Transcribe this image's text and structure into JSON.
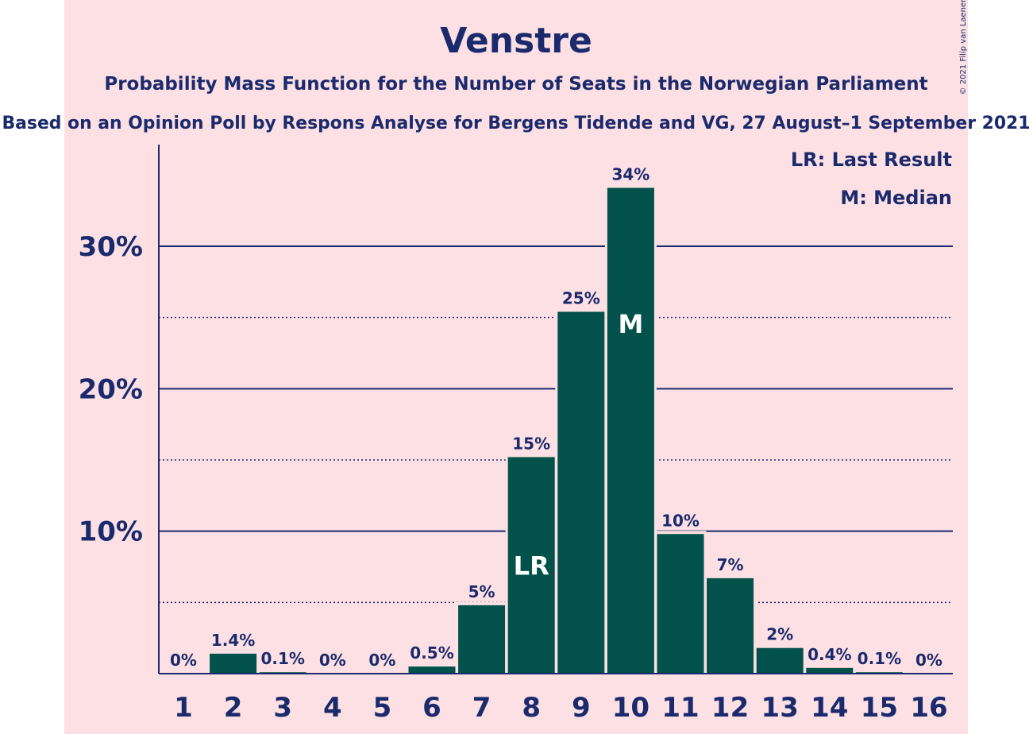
{
  "chart_data": {
    "type": "bar",
    "title": "Venstre",
    "subtitle": "Probability Mass Function for the Number of Seats in the Norwegian Parliament",
    "subtitle2": "Based on an Opinion Poll by Respons Analyse for Bergens Tidende and VG, 27 August–1 September 2021",
    "copyright": "© 2021 Filip van Laenen",
    "categories": [
      "1",
      "2",
      "3",
      "4",
      "5",
      "6",
      "7",
      "8",
      "9",
      "10",
      "11",
      "12",
      "13",
      "14",
      "15",
      "16"
    ],
    "values": [
      0,
      1.4,
      0.1,
      0,
      0,
      0.5,
      4.8,
      15.2,
      25.4,
      34.1,
      9.8,
      6.7,
      1.8,
      0.4,
      0.1,
      0
    ],
    "value_labels": [
      "0%",
      "1.4%",
      "0.1%",
      "0%",
      "0%",
      "0.5%",
      "5%",
      "15%",
      "25%",
      "34%",
      "10%",
      "7%",
      "2%",
      "0.4%",
      "0.1%",
      "0%"
    ],
    "y_ticks": [
      10,
      20,
      30
    ],
    "y_tick_labels": [
      "10%",
      "20%",
      "30%"
    ],
    "y_minor_ticks": [
      5,
      15,
      25
    ],
    "ylim": [
      0,
      37
    ],
    "bar_markers": [
      {
        "category": "8",
        "text": "LR"
      },
      {
        "category": "10",
        "text": "M"
      }
    ],
    "legend": [
      "LR: Last Result",
      "M: Median"
    ],
    "legend_position": "top-right",
    "colors": {
      "bar": "#02514a",
      "axis": "#1a2a6c",
      "background": "#fde0e4",
      "marker_text": "#ffffff"
    }
  }
}
